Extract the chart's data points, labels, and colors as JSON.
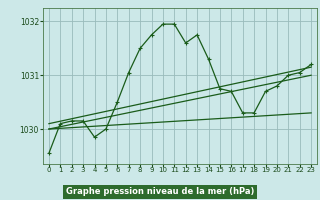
{
  "title": "Graphe pression niveau de la mer (hPa)",
  "bg_color": "#cce8e8",
  "grid_color": "#99bbbb",
  "line_color": "#1a5c1a",
  "label_bg": "#2d6b2d",
  "label_fg": "#ffffff",
  "xlim": [
    -0.5,
    23.5
  ],
  "ylim": [
    1029.35,
    1032.25
  ],
  "yticks": [
    1030,
    1031,
    1032
  ],
  "xticks": [
    0,
    1,
    2,
    3,
    4,
    5,
    6,
    7,
    8,
    9,
    10,
    11,
    12,
    13,
    14,
    15,
    16,
    17,
    18,
    19,
    20,
    21,
    22,
    23
  ],
  "main_x": [
    0,
    1,
    2,
    3,
    4,
    5,
    6,
    7,
    8,
    9,
    10,
    11,
    12,
    13,
    14,
    15,
    16,
    17,
    18,
    19,
    20,
    21,
    22,
    23
  ],
  "main_y": [
    1029.55,
    1030.1,
    1030.15,
    1030.15,
    1029.85,
    1030.0,
    1030.5,
    1031.05,
    1031.5,
    1031.75,
    1031.95,
    1031.95,
    1031.6,
    1031.75,
    1031.3,
    1030.75,
    1030.7,
    1030.3,
    1030.3,
    1030.7,
    1030.8,
    1031.0,
    1031.05,
    1031.2
  ],
  "line2_x": [
    0,
    23
  ],
  "line2_y": [
    1030.1,
    1031.15
  ],
  "line3_x": [
    0,
    23
  ],
  "line3_y": [
    1030.0,
    1030.3
  ],
  "line4_x": [
    0,
    23
  ],
  "line4_y": [
    1030.0,
    1031.0
  ],
  "lw": 0.9,
  "ms": 3.5
}
